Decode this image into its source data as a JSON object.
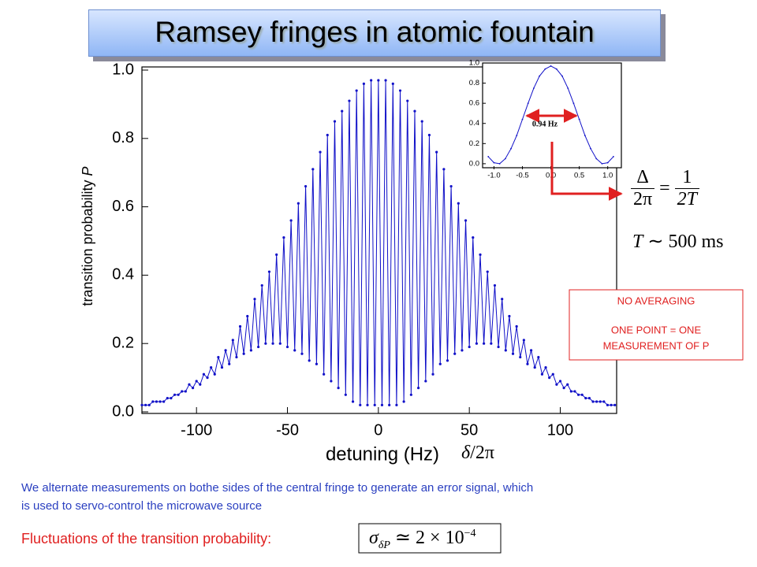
{
  "title": "Ramsey fringes in atomic fountain",
  "chart_data": [
    {
      "type": "line",
      "x_label": "detuning (Hz)",
      "y_label": "transition probability",
      "y_label_symbol": "P",
      "color": "#1010c8",
      "xlim": [
        -130,
        131
      ],
      "ylim": [
        0,
        1.0
      ],
      "xticks": [
        -100,
        -50,
        0,
        50,
        100
      ],
      "yticks": [
        {
          "value": 0,
          "label": "0.0"
        },
        {
          "value": 0.2,
          "label": "0.2"
        },
        {
          "value": 0.4,
          "label": "0.4"
        },
        {
          "value": 0.6,
          "label": "0.6"
        },
        {
          "value": 0.8,
          "label": "0.8"
        },
        {
          "value": 1.0,
          "label": "1.0"
        }
      ],
      "x": [
        -130,
        -128,
        -126,
        -124,
        -122,
        -120,
        -118,
        -116,
        -114,
        -112,
        -110,
        -108,
        -106,
        -104,
        -102,
        -100,
        -98,
        -96,
        -94,
        -92,
        -90,
        -88,
        -86,
        -84,
        -82,
        -80,
        -78,
        -76,
        -74,
        -72,
        -70,
        -68,
        -66,
        -64,
        -62,
        -60,
        -58,
        -56,
        -54,
        -52,
        -50,
        -48,
        -46,
        -44,
        -42,
        -40,
        -38,
        -36,
        -34,
        -32,
        -30,
        -28,
        -26,
        -24,
        -22,
        -20,
        -18,
        -16,
        -14,
        -12,
        -10,
        -8,
        -6,
        -4,
        -2,
        0,
        2,
        4,
        6,
        8,
        10,
        12,
        14,
        16,
        18,
        20,
        22,
        24,
        26,
        28,
        30,
        32,
        34,
        36,
        38,
        40,
        42,
        44,
        46,
        48,
        50,
        52,
        54,
        56,
        58,
        60,
        62,
        64,
        66,
        68,
        70,
        72,
        74,
        76,
        78,
        80,
        82,
        84,
        86,
        88,
        90,
        92,
        94,
        96,
        98,
        100,
        102,
        104,
        106,
        108,
        110,
        112,
        114,
        116,
        118,
        120,
        122,
        124,
        126,
        128,
        130
      ],
      "values": [
        0.02,
        0.02,
        0.02,
        0.03,
        0.03,
        0.03,
        0.03,
        0.04,
        0.04,
        0.05,
        0.05,
        0.06,
        0.06,
        0.08,
        0.07,
        0.09,
        0.08,
        0.11,
        0.1,
        0.13,
        0.11,
        0.16,
        0.13,
        0.18,
        0.14,
        0.21,
        0.16,
        0.25,
        0.17,
        0.28,
        0.18,
        0.33,
        0.19,
        0.37,
        0.2,
        0.41,
        0.2,
        0.46,
        0.2,
        0.51,
        0.19,
        0.56,
        0.18,
        0.61,
        0.17,
        0.66,
        0.15,
        0.71,
        0.14,
        0.76,
        0.11,
        0.81,
        0.09,
        0.85,
        0.07,
        0.88,
        0.05,
        0.91,
        0.03,
        0.94,
        0.02,
        0.96,
        0.02,
        0.97,
        0.02,
        0.97,
        0.02,
        0.97,
        0.02,
        0.96,
        0.02,
        0.94,
        0.03,
        0.91,
        0.05,
        0.88,
        0.07,
        0.85,
        0.09,
        0.81,
        0.11,
        0.76,
        0.14,
        0.71,
        0.15,
        0.66,
        0.17,
        0.61,
        0.18,
        0.56,
        0.19,
        0.51,
        0.2,
        0.46,
        0.2,
        0.41,
        0.2,
        0.37,
        0.19,
        0.33,
        0.18,
        0.28,
        0.17,
        0.25,
        0.16,
        0.21,
        0.14,
        0.18,
        0.13,
        0.16,
        0.11,
        0.13,
        0.1,
        0.11,
        0.08,
        0.09,
        0.07,
        0.08,
        0.06,
        0.06,
        0.05,
        0.05,
        0.04,
        0.04,
        0.03,
        0.03,
        0.03,
        0.03,
        0.02,
        0.02,
        0.02
      ]
    },
    {
      "type": "line",
      "color": "#1010c8",
      "annotation": "0.94 Hz",
      "xlim": [
        -1.2,
        1.24
      ],
      "ylim": [
        -0.04,
        1.0
      ],
      "xticks": [
        {
          "value": -1.0,
          "label": "-1.0"
        },
        {
          "value": -0.5,
          "label": "-0.5"
        },
        {
          "value": 0,
          "label": "0.0"
        },
        {
          "value": 0.5,
          "label": "0.5"
        },
        {
          "value": 1.0,
          "label": "1.0"
        }
      ],
      "yticks": [
        {
          "value": 0,
          "label": "0.0"
        },
        {
          "value": 0.2,
          "label": "0.2"
        },
        {
          "value": 0.4,
          "label": "0.4"
        },
        {
          "value": 0.6,
          "label": "0.6"
        },
        {
          "value": 0.8,
          "label": "0.8"
        },
        {
          "value": 1.0,
          "label": "1.0"
        }
      ],
      "x": [
        -1.1,
        -1.0,
        -0.9,
        -0.8,
        -0.7,
        -0.6,
        -0.5,
        -0.4,
        -0.3,
        -0.2,
        -0.1,
        0,
        0.1,
        0.2,
        0.3,
        0.4,
        0.5,
        0.6,
        0.7,
        0.8,
        0.9,
        1.0,
        1.1
      ],
      "values": [
        0.07,
        0.01,
        0.0,
        0.05,
        0.15,
        0.28,
        0.44,
        0.6,
        0.75,
        0.87,
        0.94,
        0.97,
        0.94,
        0.87,
        0.75,
        0.6,
        0.44,
        0.28,
        0.15,
        0.05,
        0.0,
        0.01,
        0.07
      ]
    }
  ],
  "formulas": {
    "bandwidth": {
      "num_left": "Δ",
      "den_left": "2π",
      "relation": "=",
      "num_right": "1",
      "den_right": "2T"
    },
    "interrogation": {
      "symbol": "T",
      "relation": "∼",
      "value": "500 ms"
    },
    "detuning_symbol": {
      "symbol": "δ",
      "rest": "/2π"
    },
    "fluctuation": {
      "symbol": "σ",
      "subscript": "δP",
      "relation": "≃",
      "mantissa": "2 ×",
      "base": "10",
      "exponent": "−4"
    }
  },
  "note_box": [
    "NO AVERAGING",
    "ONE POINT = ONE",
    "MEASUREMENT OF P"
  ],
  "description": [
    "We alternate measurements on bothe sides of the central fringe to generate an error signal, which",
    "is used to servo-control the microwave source"
  ],
  "fluctuations_label": "Fluctuations of the transition probability:"
}
